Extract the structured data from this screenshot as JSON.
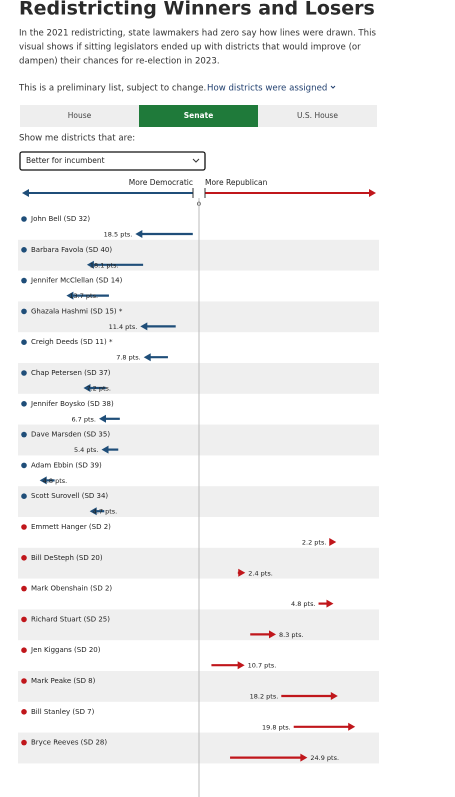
{
  "header": {
    "title": "Redistricting Winners and Losers",
    "intro": [
      "In the 2021 redistricting, state lawmakers had zero say how lines were drawn. This",
      "visual shows if sitting legislators ended up with districts that would improve (or",
      "dampen) their chances for re-election in 2023."
    ],
    "note": "This is a preliminary list, subject to change.",
    "link": "How districts were assigned"
  },
  "tabs": [
    "House",
    "Senate",
    "U.S. House"
  ],
  "active_tab": 1,
  "filter": {
    "label": "Show me districts that are:",
    "selected": "Better for incumbent"
  },
  "chart_data": {
    "type": "arrow",
    "left_label": "More Democratic",
    "right_label": "More Republican",
    "xlim": [
      -57,
      57
    ],
    "xticks": [
      0
    ],
    "series": [
      {
        "color": "#1f4e79",
        "direction": "left",
        "categories": [
          "John Bell (SD 32)",
          "Barbara Favola (SD 40)",
          "Jennifer McClellan (SD 14)",
          "Ghazala Hashmi (SD 15) *",
          "Creigh Deeds (SD 11) *",
          "Chap Petersen (SD 37)",
          "Jennifer Boysko (SD 38)",
          "Dave Marsden (SD 35)",
          "Adam Ebbin (SD 39)",
          "Scott Surovell (SD 34)"
        ],
        "start": [
          -2,
          -18,
          -29,
          -7.5,
          -10,
          -30,
          -25.5,
          -26,
          -46.5,
          -30.5
        ],
        "values": [
          18.5,
          18.1,
          13.7,
          11.4,
          7.8,
          7.2,
          6.7,
          5.4,
          4.8,
          4.7
        ],
        "value_labels": [
          "18.5 pts.",
          "18.1 pts.",
          "13.7 pts.",
          "11.4 pts.",
          "7.8 pts.",
          "7.2 pts.",
          "6.7 pts.",
          "5.4 pts.",
          "4.8 pts.",
          "4.7 pts."
        ]
      },
      {
        "color": "#c0161b",
        "direction": "right",
        "categories": [
          "Emmett Hanger (SD 2)",
          "Bill DeSteph (SD 20)",
          "Mark Obenshain (SD 2)",
          "Richard Stuart (SD 25)",
          "Jen Kiggans (SD 20)",
          "Mark Peake (SD 8)",
          "Bill Stanley (SD 7)",
          "Bryce Reeves (SD 28)"
        ],
        "start": [
          42,
          12.5,
          38.5,
          16.5,
          4,
          26.5,
          30.5,
          10
        ],
        "values": [
          2.2,
          2.4,
          4.8,
          8.3,
          10.7,
          18.2,
          19.8,
          24.9
        ],
        "value_labels": [
          "2.2 pts.",
          "2.4 pts.",
          "4.8 pts.",
          "8.3 pts.",
          "10.7 pts.",
          "18.2 pts.",
          "19.8 pts.",
          "24.9 pts."
        ]
      }
    ]
  }
}
